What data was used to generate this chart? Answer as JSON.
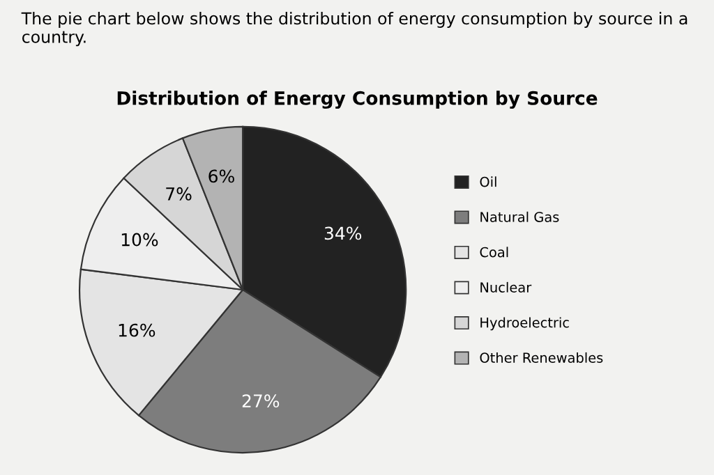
{
  "chart_data": {
    "type": "pie",
    "title": "Distribution of Energy Consumption by Source",
    "annotations": [
      "The pie chart below shows the distribution of energy consumption by source in a country."
    ],
    "categories": [
      "Oil",
      "Natural Gas",
      "Coal",
      "Nuclear",
      "Hydroelectric",
      "Other Renewables"
    ],
    "values": [
      34,
      27,
      16,
      10,
      7,
      6
    ],
    "value_labels": [
      "34%",
      "27%",
      "16%",
      "10%",
      "7%",
      "6%"
    ],
    "colors": [
      "#222222",
      "#7d7d7d",
      "#e4e4e4",
      "#eeeeee",
      "#d6d6d6",
      "#b3b3b3"
    ],
    "legend": "right"
  }
}
